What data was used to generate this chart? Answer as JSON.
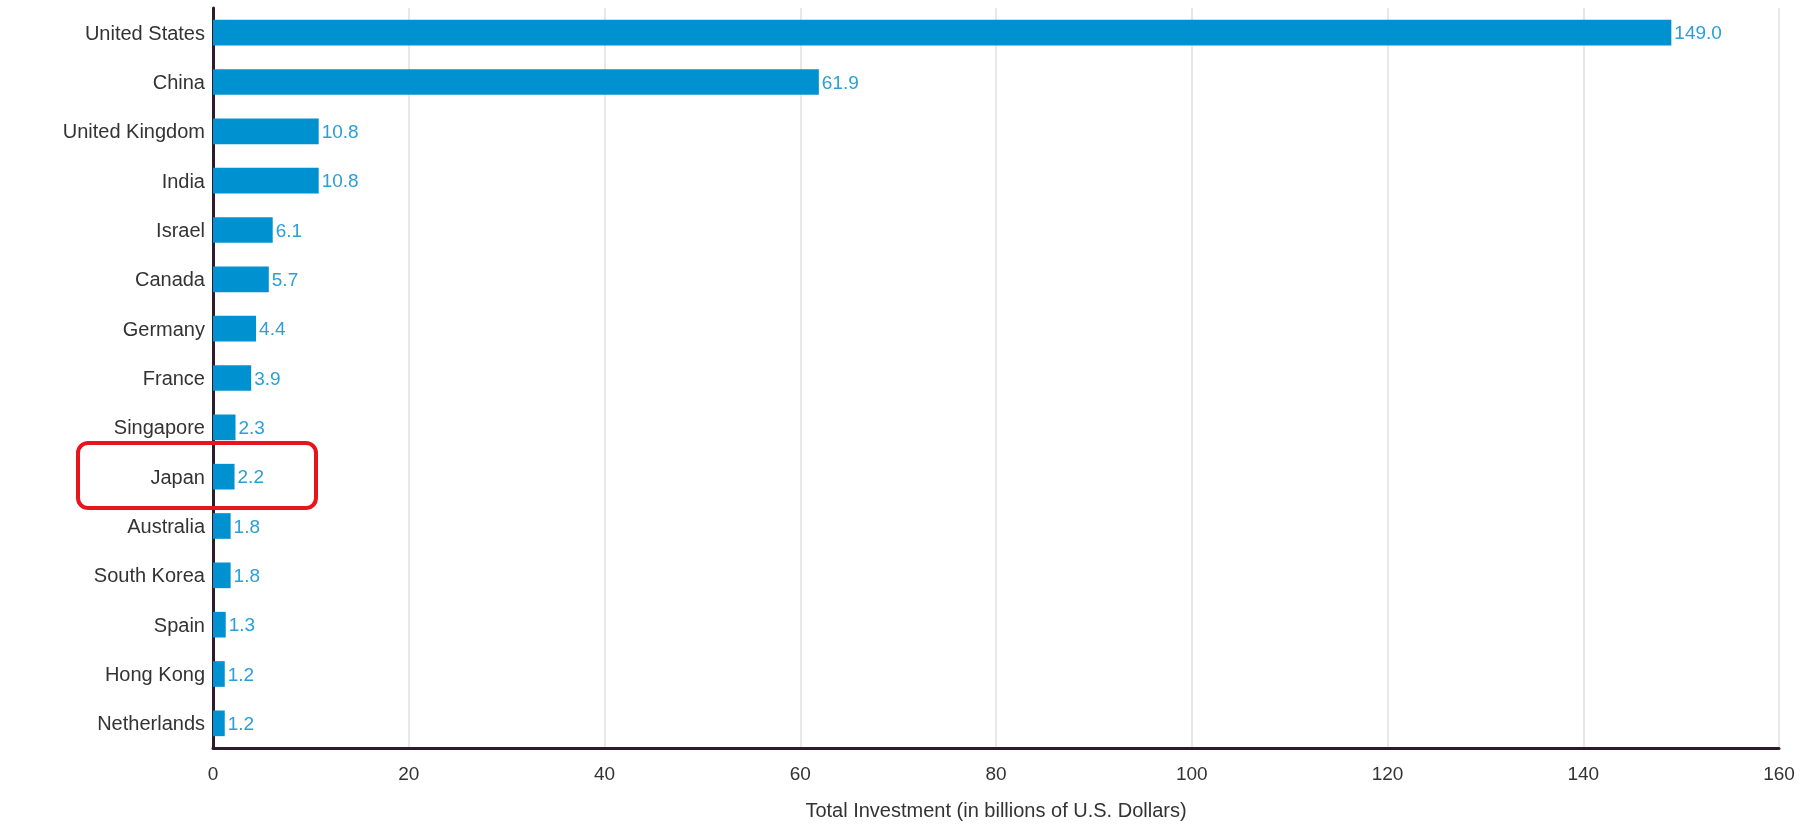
{
  "chart_data": {
    "type": "bar",
    "orientation": "horizontal",
    "xlabel": "Total Investment (in billions of U.S. Dollars)",
    "categories": [
      "United States",
      "China",
      "United Kingdom",
      "India",
      "Israel",
      "Canada",
      "Germany",
      "France",
      "Singapore",
      "Japan",
      "Australia",
      "South Korea",
      "Spain",
      "Hong Kong",
      "Netherlands"
    ],
    "values": [
      149.0,
      61.9,
      10.8,
      10.8,
      6.1,
      5.7,
      4.4,
      3.9,
      2.3,
      2.2,
      1.8,
      1.8,
      1.3,
      1.2,
      1.2
    ],
    "value_labels": [
      "149.0",
      "61.9",
      "10.8",
      "10.8",
      "6.1",
      "5.7",
      "4.4",
      "3.9",
      "2.3",
      "2.2",
      "1.8",
      "1.8",
      "1.3",
      "1.2",
      "1.2"
    ],
    "color": "#0091d0",
    "xlim": [
      0,
      160
    ],
    "xticks": [
      0,
      20,
      40,
      60,
      80,
      100,
      120,
      140,
      160
    ],
    "grid": "x"
  }
}
